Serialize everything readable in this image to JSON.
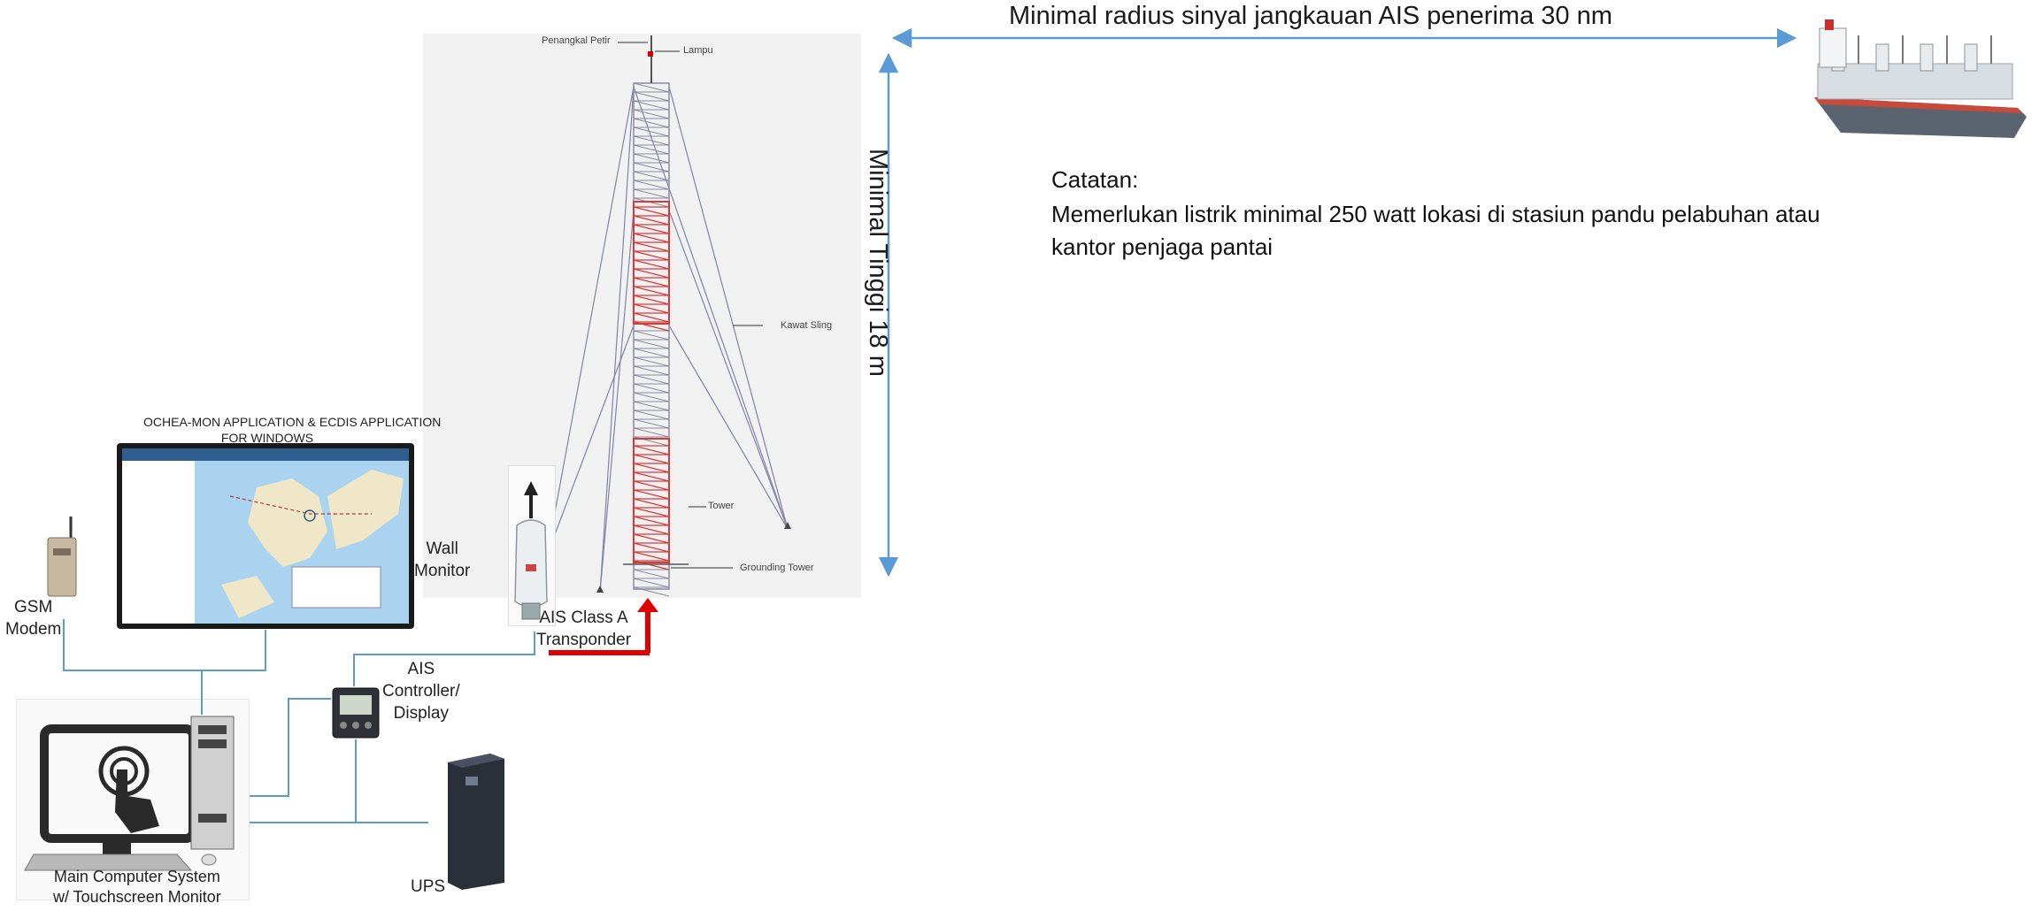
{
  "annotations": {
    "radius": "Minimal radius sinyal jangkauan AIS penerima 30 nm",
    "height": "Minimal Tinggi 18  m",
    "note_title": "Catatan:",
    "note_line1": "Memerlukan listrik minimal 250 watt lokasi di stasiun pandu pelabuhan atau",
    "note_line2": "kantor penjaga pantai"
  },
  "tower": {
    "lightning_rod": "Penangkal Petir",
    "lamp": "Lampu",
    "guy_wire": "Kawat Sling",
    "tower": "Tower",
    "grounding": "Grounding Tower"
  },
  "equipment": {
    "app_title_line1": "OCHEA-MON APPLICATION & ECDIS APPLICATION",
    "app_title_line2": "FOR WINDOWS",
    "wall_monitor_line1": "Wall",
    "wall_monitor_line2": "Monitor",
    "gsm_line1": "GSM",
    "gsm_line2": "Modem",
    "transponder_line1": "AIS Class A",
    "transponder_line2": "Transponder",
    "controller_line1": "AIS",
    "controller_line2": "Controller/",
    "controller_line3": "Display",
    "ups": "UPS",
    "computer_line1": "Main Computer System",
    "computer_line2": "w/ Touchscreen Monitor"
  },
  "colors": {
    "arrow_blue": "#5b9bd5",
    "wire_blue": "#5b9bd5",
    "antenna_red": "#e00000",
    "tower_red": "#d83a3a",
    "tower_grey": "#8a8aa0"
  }
}
